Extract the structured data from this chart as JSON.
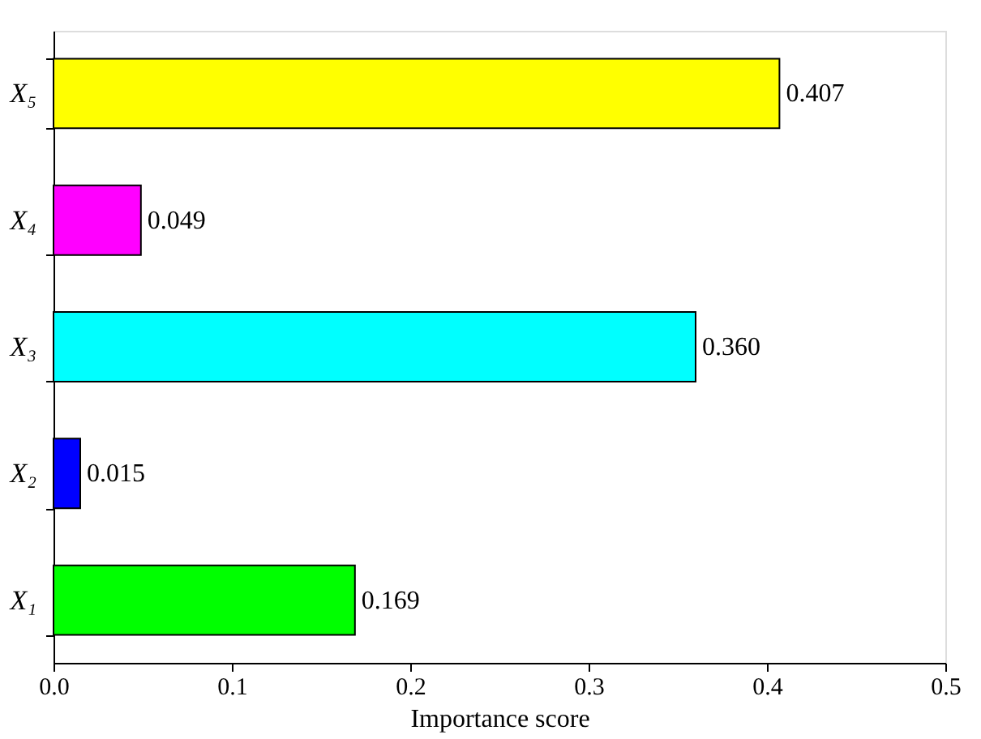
{
  "chart_data": {
    "type": "bar",
    "orientation": "horizontal",
    "xlabel": "Importance score",
    "categories": [
      "X₅",
      "X₄",
      "X₃",
      "X₂",
      "X₁"
    ],
    "values": [
      0.407,
      0.049,
      0.36,
      0.015,
      0.169
    ],
    "colors": [
      "#ffff00",
      "#ff00ff",
      "#00ffff",
      "#0000ff",
      "#00ff00"
    ],
    "value_labels": [
      "0.407",
      "0.049",
      "0.360",
      "0.015",
      "0.169"
    ],
    "xlim": [
      0,
      0.5
    ],
    "xticks": [
      {
        "value": 0,
        "label": "0.0"
      },
      0.1,
      0.2,
      0.3,
      0.4,
      0.5
    ],
    "grid": false
  }
}
